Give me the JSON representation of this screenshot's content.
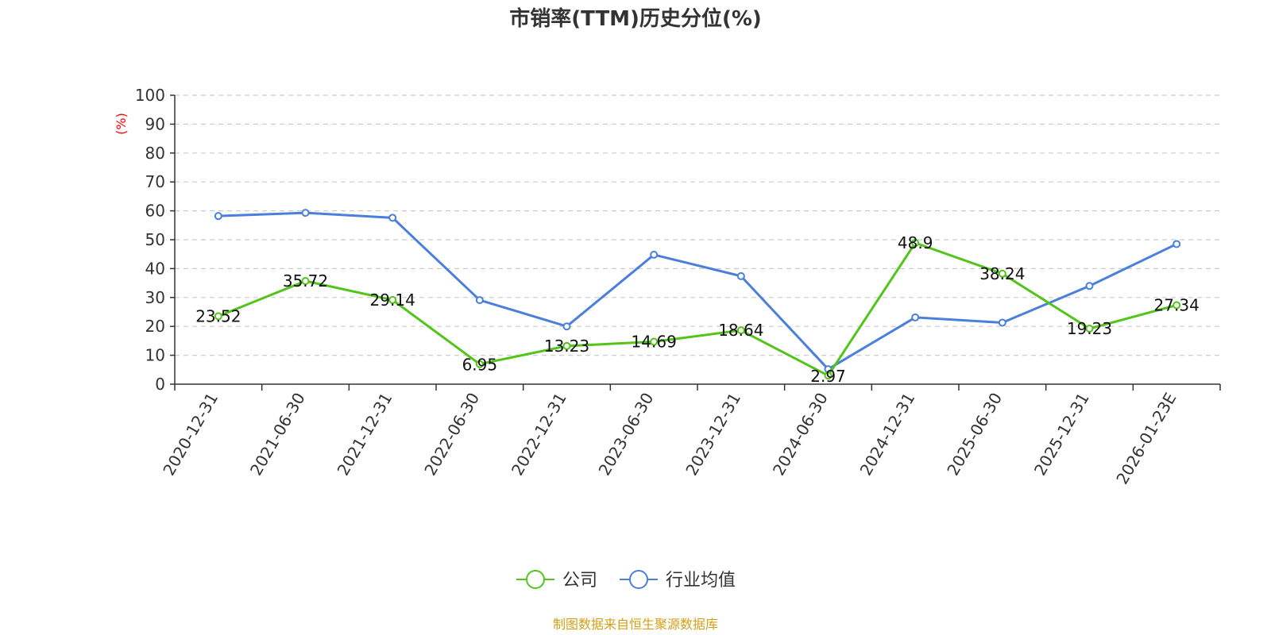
{
  "title": "市销率(TTM)历史分位(%)",
  "source_note": "制图数据来自恒生聚源数据库",
  "colors": {
    "company": "#52c41a",
    "industry": "#4a7fdc",
    "ylabel": "#ff0000",
    "source": "#d4a017"
  },
  "chart_data": {
    "type": "line",
    "title": "市销率(TTM)历史分位(%)",
    "ylabel": "(%)",
    "xlabel": "",
    "ylim": [
      0,
      100
    ],
    "yticks": [
      0,
      10,
      20,
      30,
      40,
      50,
      60,
      70,
      80,
      90,
      100
    ],
    "grid": true,
    "legend_position": "bottom-center",
    "categories": [
      "2020-12-31",
      "2021-06-30",
      "2021-12-31",
      "2022-06-30",
      "2022-12-31",
      "2023-06-30",
      "2023-12-31",
      "2024-06-30",
      "2024-12-31",
      "2025-06-30",
      "2025-12-31",
      "2026-01-23E"
    ],
    "series": [
      {
        "name": "公司",
        "color": "#52c41a",
        "values": [
          23.52,
          35.72,
          29.14,
          6.95,
          13.23,
          14.69,
          18.64,
          2.97,
          48.9,
          38.24,
          19.23,
          27.34
        ],
        "labels": [
          "23.52",
          "35.72",
          "29.14",
          "6.95",
          "13.23",
          "14.69",
          "18.64",
          "2.97",
          "48.9",
          "38.24",
          "19.23",
          "27.34"
        ]
      },
      {
        "name": "行业均值",
        "color": "#4a7fdc",
        "values": [
          58.2,
          59.3,
          57.6,
          29.1,
          20.0,
          44.8,
          37.4,
          5.2,
          23.1,
          21.3,
          34.0,
          48.5
        ]
      }
    ]
  }
}
